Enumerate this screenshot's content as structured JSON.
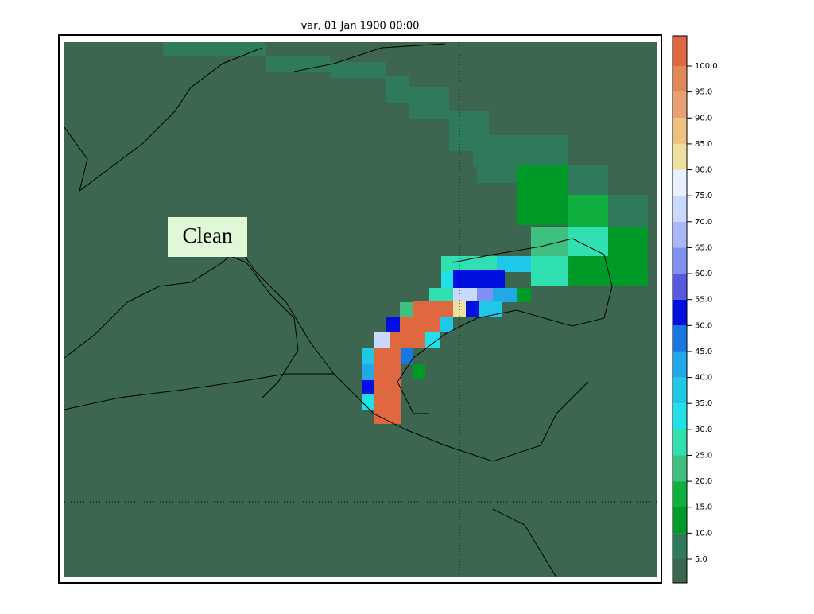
{
  "title": "var, 01 Jan 1900 00:00",
  "annotation": "Clean",
  "colorbar": {
    "ticks": [
      {
        "value": 5,
        "label": "5.0"
      },
      {
        "value": 10,
        "label": "10.0"
      },
      {
        "value": 15,
        "label": "15.0"
      },
      {
        "value": 20,
        "label": "20.0"
      },
      {
        "value": 25,
        "label": "25.0"
      },
      {
        "value": 30,
        "label": "30.0"
      },
      {
        "value": 35,
        "label": "35.0"
      },
      {
        "value": 40,
        "label": "40.0"
      },
      {
        "value": 45,
        "label": "45.0"
      },
      {
        "value": 50,
        "label": "50.0"
      },
      {
        "value": 55,
        "label": "55.0"
      },
      {
        "value": 60,
        "label": "60.0"
      },
      {
        "value": 65,
        "label": "65.0"
      },
      {
        "value": 70,
        "label": "70.0"
      },
      {
        "value": 75,
        "label": "75.0"
      },
      {
        "value": 80,
        "label": "80.0"
      },
      {
        "value": 85,
        "label": "85.0"
      },
      {
        "value": 90,
        "label": "90.0"
      },
      {
        "value": 95,
        "label": "95.0"
      },
      {
        "value": 100,
        "label": "100.0"
      }
    ],
    "colors": [
      "#3d6650",
      "#2e7a5a",
      "#009a28",
      "#10b040",
      "#40c080",
      "#30e0b0",
      "#20e0e8",
      "#20c8e8",
      "#20a8e8",
      "#1878e0",
      "#0010e0",
      "#5858e0",
      "#8090f0",
      "#a8b8f8",
      "#c8d8ff",
      "#e8f0ff",
      "#f0e0a0",
      "#f0c080",
      "#e8a070",
      "#e08858",
      "#e06840"
    ]
  }
}
